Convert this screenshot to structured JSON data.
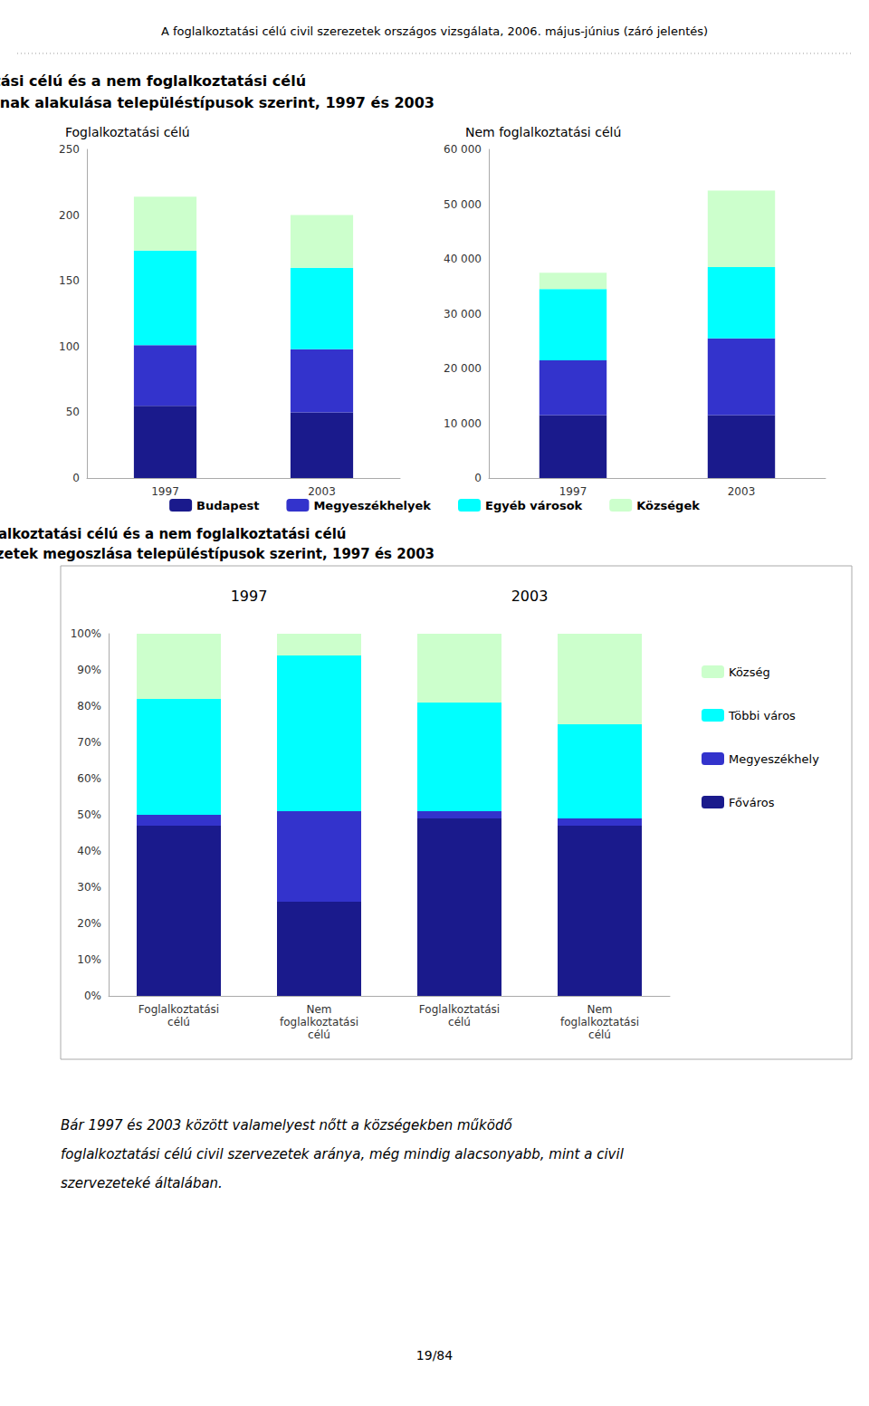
{
  "chart_data": [
    {
      "type": "bar",
      "stacked": true,
      "title": "A foglalkoztatási célú és a nem foglalkoztatási célú\nnon-profit szervezetek számának alakulása településtípusok szerint, 1997 és 2003",
      "subtitle": "Foglalkoztatási célú",
      "annotations": [
        "A foglalkoztatási célú civil szerezetek országos vizsgálata, 2006. május-június (záró jelentés)",
        "Bár 1997 és 2003 között valamelyest nőtt a községekben működő",
        "foglalkoztatási célú civil szervezetek aránya, még mindig alacsonyabb, mint a civil",
        "szervezeteké általában.",
        "19/84"
      ],
      "categories": [
        "1997",
        "2003"
      ],
      "series": [
        {
          "name": "Budapest",
          "color": "#1a1a8c",
          "values": [
            55,
            50
          ]
        },
        {
          "name": "Megyeszékhelyek",
          "color": "#3333cc",
          "values": [
            46,
            48
          ]
        },
        {
          "name": "Egyéb városok",
          "color": "#00ffff",
          "values": [
            72,
            62
          ]
        },
        {
          "name": "Községek",
          "color": "#ccffcc",
          "values": [
            41,
            40
          ]
        }
      ],
      "ylim": [
        0,
        250
      ],
      "yticks": [
        0,
        50,
        100,
        150,
        200,
        250
      ],
      "grid": false
    },
    {
      "type": "bar",
      "stacked": true,
      "subtitle": "Nem foglalkoztatási célú",
      "categories": [
        "1997",
        "2003"
      ],
      "series": [
        {
          "name": "Budapest",
          "color": "#1a1a8c",
          "values": [
            11500,
            11500
          ]
        },
        {
          "name": "Megyeszékhelyek",
          "color": "#3333cc",
          "values": [
            10000,
            14000
          ]
        },
        {
          "name": "Egyéb városok",
          "color": "#00ffff",
          "values": [
            13000,
            13000
          ]
        },
        {
          "name": "Községek",
          "color": "#ccffcc",
          "values": [
            3000,
            14000
          ]
        }
      ],
      "ylim": [
        0,
        60000
      ],
      "yticks": [
        0,
        {
          "value": 10000,
          "label": "10 000"
        },
        {
          "value": 20000,
          "label": "20 000"
        },
        {
          "value": 30000,
          "label": "30 000"
        },
        {
          "value": 40000,
          "label": "40 000"
        },
        {
          "value": 50000,
          "label": "50 000"
        },
        {
          "value": 60000,
          "label": "60 000"
        }
      ],
      "grid": false,
      "legend": "bottom"
    },
    {
      "type": "bar",
      "stacked": true,
      "title": "A foglalkoztatási célú és a nem foglalkoztatási célú\nnon-profit szervezetek megoszlása településtípusok szerint, 1997 és 2003",
      "annotations": [
        "1997",
        "2003"
      ],
      "categories": [
        "Foglalkoztatási\ncélú",
        "Nem\nfoglalkoztatási\ncélú",
        "Foglalkoztatási\ncélú",
        "Nem\nfoglalkoztatási\ncélú"
      ],
      "series": [
        {
          "name": "Főváros",
          "color": "#1a1a8c",
          "values": [
            47,
            26,
            49,
            47
          ]
        },
        {
          "name": "Megyeszékhely",
          "color": "#3333cc",
          "values": [
            3,
            25,
            2,
            2
          ]
        },
        {
          "name": "Többi város",
          "color": "#00ffff",
          "values": [
            32,
            43,
            30,
            26
          ]
        },
        {
          "name": "Község",
          "color": "#ccffcc",
          "values": [
            18,
            6,
            19,
            25
          ]
        }
      ],
      "ylim": [
        0,
        100
      ],
      "yticks": [
        {
          "value": 0,
          "label": "0%"
        },
        {
          "value": 10,
          "label": "10%"
        },
        {
          "value": 20,
          "label": "20%"
        },
        {
          "value": 30,
          "label": "30%"
        },
        {
          "value": 40,
          "label": "40%"
        },
        {
          "value": 50,
          "label": "50%"
        },
        {
          "value": 60,
          "label": "60%"
        },
        {
          "value": 70,
          "label": "70%"
        },
        {
          "value": 80,
          "label": "80%"
        },
        {
          "value": 90,
          "label": "90%"
        },
        {
          "value": 100,
          "label": "100%"
        }
      ],
      "grid": false,
      "legend": "right"
    }
  ]
}
